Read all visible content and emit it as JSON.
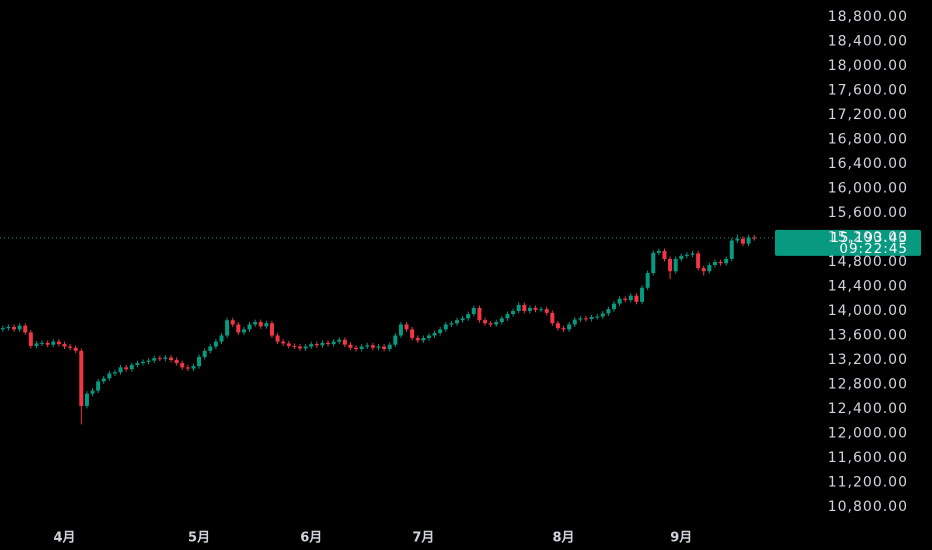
{
  "chart_data": {
    "type": "candlestick",
    "categories": [
      null,
      null,
      null,
      null,
      null,
      null,
      null,
      null,
      null,
      null,
      null,
      "4月",
      null,
      null,
      null,
      null,
      null,
      null,
      null,
      null,
      null,
      null,
      null,
      null,
      null,
      null,
      null,
      null,
      null,
      null,
      null,
      null,
      null,
      null,
      null,
      "5月",
      null,
      null,
      null,
      null,
      null,
      null,
      null,
      null,
      null,
      null,
      null,
      null,
      null,
      null,
      null,
      null,
      null,
      null,
      null,
      "6月",
      null,
      null,
      null,
      null,
      null,
      null,
      null,
      null,
      null,
      null,
      null,
      null,
      null,
      null,
      null,
      null,
      null,
      null,
      null,
      "7月",
      null,
      null,
      null,
      null,
      null,
      null,
      null,
      null,
      null,
      null,
      null,
      null,
      null,
      null,
      null,
      null,
      null,
      null,
      null,
      null,
      null,
      null,
      null,
      null,
      "8月",
      null,
      null,
      null,
      null,
      null,
      null,
      null,
      null,
      null,
      null,
      null,
      null,
      null,
      null,
      null,
      null,
      null,
      null,
      null,
      null,
      "9月",
      null,
      null,
      null,
      null,
      null,
      null,
      null,
      null,
      null,
      null,
      null,
      null,
      null
    ],
    "open": [
      13700,
      13720,
      13740,
      13700,
      13760,
      13650,
      13430,
      13470,
      13480,
      13450,
      13500,
      13460,
      13420,
      13400,
      13350,
      12450,
      12650,
      12700,
      12850,
      12900,
      12980,
      13000,
      13080,
      13050,
      13120,
      13150,
      13170,
      13190,
      13230,
      13220,
      13240,
      13200,
      13150,
      13080,
      13060,
      13100,
      13250,
      13350,
      13420,
      13500,
      13600,
      13850,
      13780,
      13650,
      13700,
      13780,
      13820,
      13750,
      13800,
      13600,
      13500,
      13470,
      13430,
      13420,
      13390,
      13420,
      13460,
      13440,
      13480,
      13460,
      13500,
      13530,
      13450,
      13400,
      13380,
      13420,
      13440,
      13400,
      13420,
      13380,
      13450,
      13600,
      13780,
      13700,
      13560,
      13520,
      13560,
      13600,
      13640,
      13700,
      13780,
      13800,
      13850,
      13880,
      13950,
      14050,
      13850,
      13800,
      13780,
      13820,
      13880,
      13950,
      14000,
      14100,
      14000,
      14050,
      14020,
      14030,
      13970,
      13800,
      13720,
      13700,
      13780,
      13860,
      13880,
      13870,
      13900,
      13910,
      13960,
      14030,
      14120,
      14200,
      14180,
      14250,
      14150,
      14380,
      14620,
      14950,
      14980,
      14850,
      14650,
      14850,
      14900,
      14920,
      14940,
      14700,
      14650,
      14750,
      14800,
      14780,
      14850,
      15150,
      15180,
      15100,
      15200
    ],
    "high": [
      13760,
      13780,
      13780,
      13800,
      13800,
      13690,
      13510,
      13520,
      13520,
      13540,
      13540,
      13500,
      13460,
      13440,
      13390,
      12690,
      12740,
      12890,
      12940,
      13020,
      13040,
      13120,
      13120,
      13160,
      13190,
      13210,
      13230,
      13270,
      13270,
      13280,
      13280,
      13240,
      13190,
      13120,
      13140,
      13290,
      13390,
      13460,
      13540,
      13640,
      13890,
      13890,
      13820,
      13740,
      13820,
      13860,
      13860,
      13840,
      13840,
      13640,
      13540,
      13510,
      13470,
      13460,
      13460,
      13500,
      13500,
      13520,
      13520,
      13540,
      13570,
      13570,
      13490,
      13440,
      13460,
      13480,
      13480,
      13460,
      13460,
      13490,
      13640,
      13820,
      13820,
      13740,
      13600,
      13600,
      13640,
      13680,
      13740,
      13820,
      13840,
      13890,
      13920,
      13990,
      14090,
      14090,
      13890,
      13840,
      13860,
      13920,
      13990,
      14040,
      14140,
      14140,
      14090,
      14090,
      14070,
      14070,
      14010,
      13840,
      13760,
      13820,
      13900,
      13920,
      13920,
      13940,
      13950,
      14000,
      14070,
      14160,
      14240,
      14240,
      14290,
      14290,
      14420,
      14660,
      14990,
      15020,
      15020,
      14890,
      14890,
      14940,
      14960,
      14980,
      14980,
      14740,
      14790,
      14840,
      14840,
      14890,
      15190,
      15250,
      15220,
      15240,
      15240
    ],
    "low": [
      13660,
      13680,
      13660,
      13660,
      13610,
      13390,
      13390,
      13430,
      13410,
      13410,
      13420,
      13380,
      13360,
      13310,
      12150,
      12410,
      12610,
      12660,
      12810,
      12860,
      12940,
      12960,
      13010,
      13010,
      13080,
      13110,
      13130,
      13150,
      13180,
      13180,
      13160,
      13110,
      13040,
      13020,
      13020,
      13060,
      13210,
      13310,
      13380,
      13460,
      13560,
      13740,
      13610,
      13610,
      13660,
      13740,
      13710,
      13710,
      13560,
      13460,
      13430,
      13390,
      13380,
      13350,
      13350,
      13380,
      13400,
      13400,
      13420,
      13420,
      13460,
      13410,
      13360,
      13340,
      13340,
      13380,
      13360,
      13360,
      13340,
      13340,
      13410,
      13560,
      13660,
      13520,
      13480,
      13480,
      13520,
      13560,
      13600,
      13660,
      13740,
      13760,
      13810,
      13840,
      13910,
      13810,
      13760,
      13740,
      13740,
      13780,
      13840,
      13910,
      13960,
      13960,
      13960,
      13980,
      13980,
      13930,
      13760,
      13680,
      13660,
      13660,
      13740,
      13820,
      13830,
      13830,
      13860,
      13870,
      13920,
      13990,
      14080,
      14140,
      14140,
      14110,
      14110,
      14340,
      14580,
      14910,
      14810,
      14520,
      14610,
      14810,
      14860,
      14880,
      14660,
      14580,
      14610,
      14710,
      14740,
      14740,
      14810,
      15110,
      15060,
      15060,
      15150
    ],
    "close": [
      13720,
      13740,
      13700,
      13760,
      13650,
      13430,
      13470,
      13480,
      13450,
      13500,
      13460,
      13420,
      13400,
      13350,
      12450,
      12650,
      12700,
      12850,
      12900,
      12980,
      13000,
      13080,
      13050,
      13120,
      13150,
      13170,
      13190,
      13230,
      13220,
      13240,
      13200,
      13150,
      13080,
      13060,
      13100,
      13250,
      13350,
      13420,
      13500,
      13600,
      13850,
      13780,
      13650,
      13700,
      13780,
      13820,
      13750,
      13800,
      13600,
      13500,
      13470,
      13430,
      13420,
      13390,
      13420,
      13460,
      13440,
      13480,
      13460,
      13500,
      13530,
      13450,
      13400,
      13380,
      13420,
      13440,
      13400,
      13420,
      13380,
      13450,
      13600,
      13780,
      13700,
      13560,
      13520,
      13560,
      13600,
      13640,
      13700,
      13780,
      13800,
      13850,
      13880,
      13950,
      14050,
      13850,
      13800,
      13780,
      13820,
      13880,
      13950,
      14000,
      14100,
      14000,
      14050,
      14020,
      14030,
      13970,
      13800,
      13720,
      13700,
      13780,
      13860,
      13880,
      13870,
      13900,
      13910,
      13960,
      14030,
      14120,
      14200,
      14180,
      14250,
      14150,
      14380,
      14620,
      14950,
      14980,
      14850,
      14650,
      14850,
      14900,
      14920,
      14940,
      14700,
      14650,
      14750,
      14800,
      14780,
      14850,
      15150,
      15180,
      15100,
      15200,
      15193.43
    ],
    "up_color": "#089981",
    "down_color": "#f23645",
    "ylim": [
      10506,
      19078
    ],
    "yticks": [
      {
        "value": 10800,
        "label": "10,800.00"
      },
      {
        "value": 11200,
        "label": "11,200.00"
      },
      {
        "value": 11600,
        "label": "11,600.00"
      },
      {
        "value": 12000,
        "label": "12,000.00"
      },
      {
        "value": 12400,
        "label": "12,400.00"
      },
      {
        "value": 12800,
        "label": "12,800.00"
      },
      {
        "value": 13200,
        "label": "13,200.00"
      },
      {
        "value": 13600,
        "label": "13,600.00"
      },
      {
        "value": 14000,
        "label": "14,000.00"
      },
      {
        "value": 14400,
        "label": "14,400.00"
      },
      {
        "value": 14800,
        "label": "14,800.00"
      },
      {
        "value": 15200,
        "label": "15,200.00"
      },
      {
        "value": 15600,
        "label": "15,600.00"
      },
      {
        "value": 16000,
        "label": "16,000.00"
      },
      {
        "value": 16400,
        "label": "16,400.00"
      },
      {
        "value": 16800,
        "label": "16,800.00"
      },
      {
        "value": 17200,
        "label": "17,200.00"
      },
      {
        "value": 17600,
        "label": "17,600.00"
      },
      {
        "value": 18000,
        "label": "18,000.00"
      },
      {
        "value": 18400,
        "label": "18,400.00"
      },
      {
        "value": 18800,
        "label": "18,800.00"
      }
    ],
    "last_price": {
      "value": 15193.43,
      "label": "15,193.43"
    },
    "countdown": "09:22:45"
  }
}
